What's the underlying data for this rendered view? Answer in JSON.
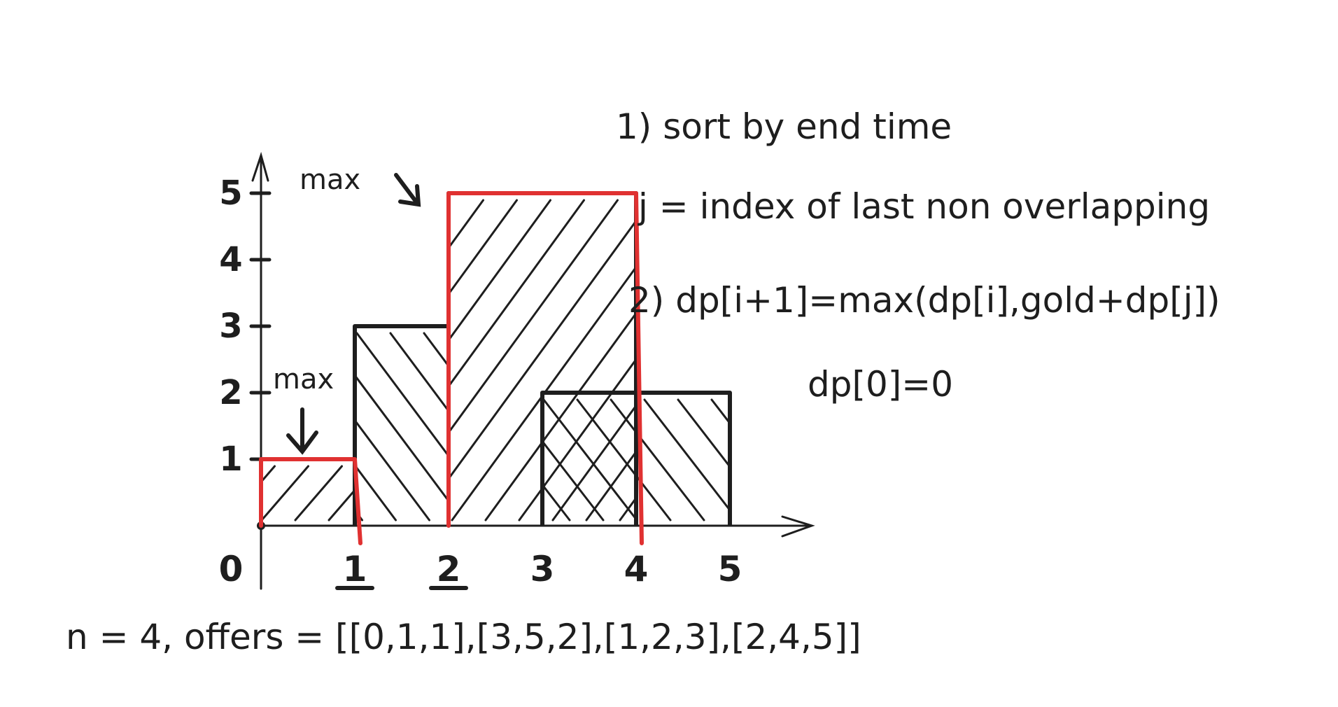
{
  "axes": {
    "x_ticks": [
      "0",
      "1",
      "2",
      "3",
      "4",
      "5"
    ],
    "y_ticks": [
      "1",
      "2",
      "3",
      "4",
      "5"
    ]
  },
  "offers": [
    {
      "start": 0,
      "end": 1,
      "gold": 1
    },
    {
      "start": 1,
      "end": 2,
      "gold": 3
    },
    {
      "start": 2,
      "end": 4,
      "gold": 5
    },
    {
      "start": 3,
      "end": 5,
      "gold": 2
    }
  ],
  "optimal_path": [
    {
      "start": 0,
      "end": 1,
      "gold": 1
    },
    {
      "start": 2,
      "end": 4,
      "gold": 5
    }
  ],
  "annotations": {
    "max_left": "max",
    "max_top": "max"
  },
  "notes": {
    "step1": "1) sort by end time",
    "j_def": "j = index of last non overlapping",
    "step2": "2) dp[i+1]=max(dp[i],gold+dp[j])",
    "base": "dp[0]=0"
  },
  "problem": "n = 4, offers = [[0,1,1],[3,5,2],[1,2,3],[2,4,5]]",
  "colors": {
    "ink": "#1e1e1e",
    "highlight": "#e03131",
    "background": "#ffffff"
  }
}
